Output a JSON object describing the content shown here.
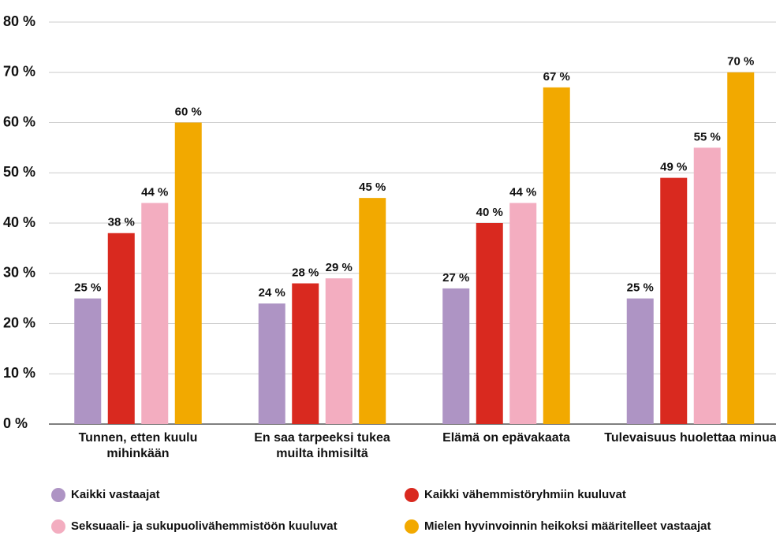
{
  "chart_data": {
    "type": "bar",
    "categories": [
      "Tunnen, etten kuulu mihinkään",
      "En saa tarpeeksi tukea muilta ihmisiltä",
      "Elämä on epävakaata",
      "Tulevaisuus huolettaa minua"
    ],
    "series": [
      {
        "name": "Kaikki vastaajat",
        "color": "#ae94c4",
        "values": [
          25,
          24,
          27,
          25
        ],
        "value_labels": [
          "25 %",
          "24 %",
          "27 %",
          "25 %"
        ]
      },
      {
        "name": "Kaikki vähemmistöryhmiin kuuluvat",
        "color": "#d9291f",
        "values": [
          38,
          28,
          40,
          49
        ],
        "value_labels": [
          "38 %",
          "28 %",
          "40 %",
          "49 %"
        ]
      },
      {
        "name": "Seksuaali- ja sukupuolivähemmistöön kuuluvat",
        "color": "#f3adc0",
        "values": [
          44,
          29,
          44,
          55
        ],
        "value_labels": [
          "44 %",
          "29 %",
          "44 %",
          "55 %"
        ]
      },
      {
        "name": "Mielen hyvinvoinnin heikoksi määritelleet vastaajat",
        "color": "#f2a900",
        "values": [
          60,
          45,
          67,
          70
        ],
        "value_labels": [
          "60 %",
          "45 %",
          "67 %",
          "70 %"
        ]
      }
    ],
    "ylim": [
      0,
      80
    ],
    "yticks": [
      {
        "value": 0,
        "label": "0 %"
      },
      {
        "value": 10,
        "label": "10 %"
      },
      {
        "value": 20,
        "label": "20 %"
      },
      {
        "value": 30,
        "label": "30 %"
      },
      {
        "value": 40,
        "label": "40 %"
      },
      {
        "value": 50,
        "label": "50 %"
      },
      {
        "value": 60,
        "label": "60 %"
      },
      {
        "value": 70,
        "label": "70 %"
      },
      {
        "value": 80,
        "label": "80 %"
      }
    ],
    "grid": true,
    "legend": "bottom"
  }
}
